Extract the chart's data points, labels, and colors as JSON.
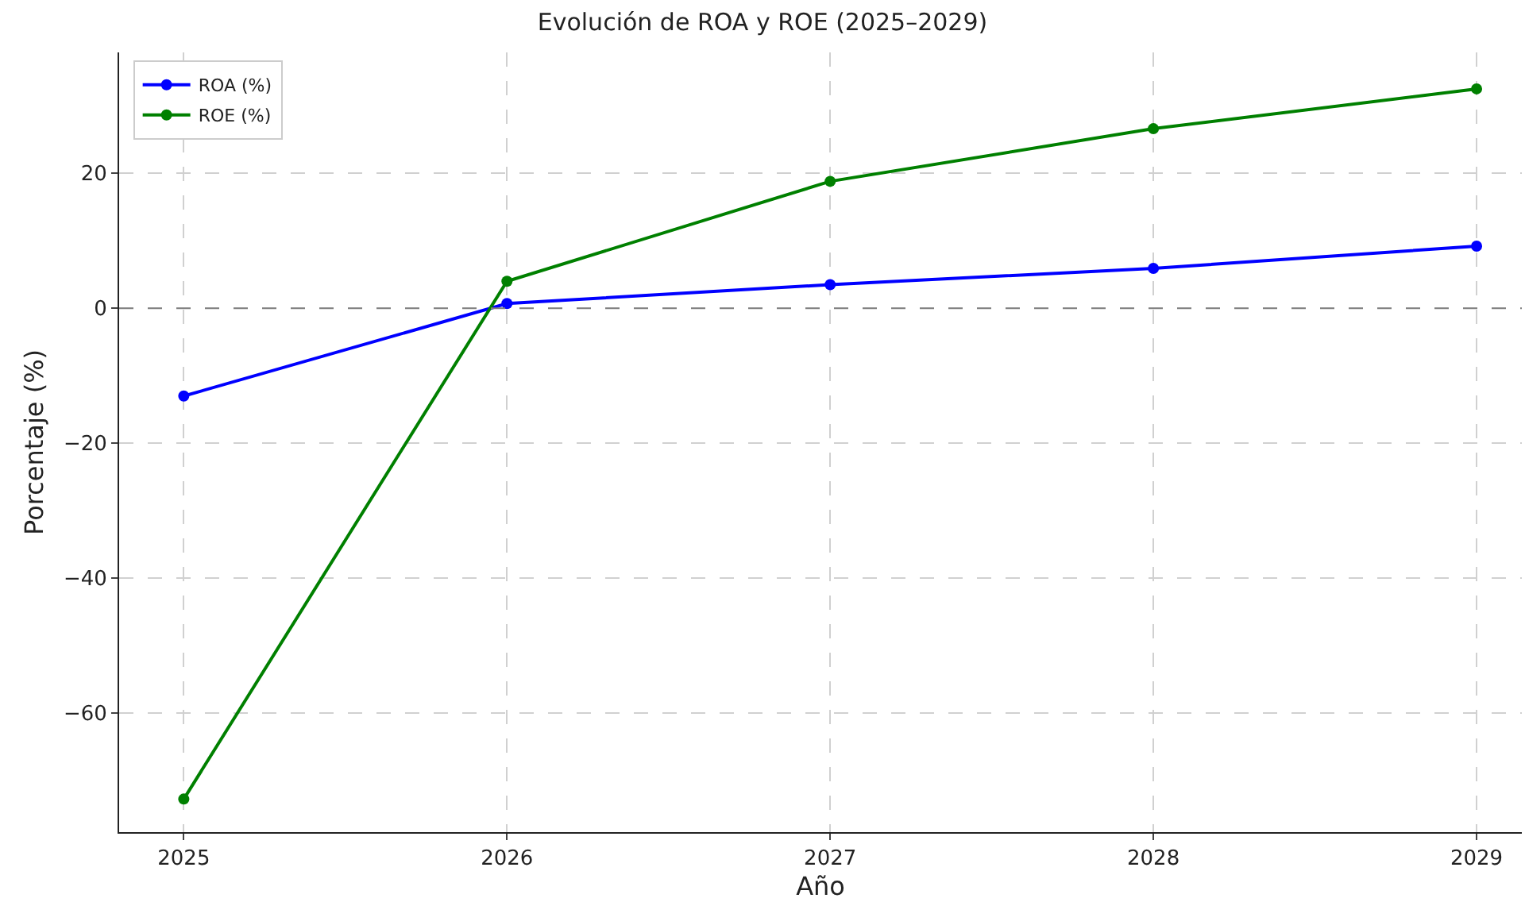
{
  "chart_data": {
    "type": "line",
    "title": "Evolución de ROA y ROE (2025–2029)",
    "xlabel": "Año",
    "ylabel": "Porcentaje (%)",
    "x": [
      2025,
      2026,
      2027,
      2028,
      2029
    ],
    "series": [
      {
        "name": "ROA (%)",
        "color": "#0000ff",
        "values": [
          -13,
          0.7,
          3.5,
          5.9,
          9.2
        ]
      },
      {
        "name": "ROE (%)",
        "color": "#008000",
        "values": [
          -72.7,
          4,
          18.8,
          26.6,
          32.5
        ]
      }
    ],
    "xlim": [
      2024.8,
      2029.14
    ],
    "xticks": [
      2025,
      2026,
      2027,
      2028,
      2029
    ],
    "ylim": [
      -77.6,
      37.9
    ],
    "yticks": [
      {
        "value": -60,
        "label": "−60"
      },
      {
        "value": -40,
        "label": "−40"
      },
      {
        "value": -20,
        "label": "−20"
      },
      0,
      20
    ],
    "ref_lines": [
      {
        "axis": "y",
        "value": 0,
        "color": "#808080",
        "line_style": "dashed"
      }
    ],
    "grid": true,
    "legend": "top left",
    "marker": "circle",
    "line_style": "solid"
  }
}
